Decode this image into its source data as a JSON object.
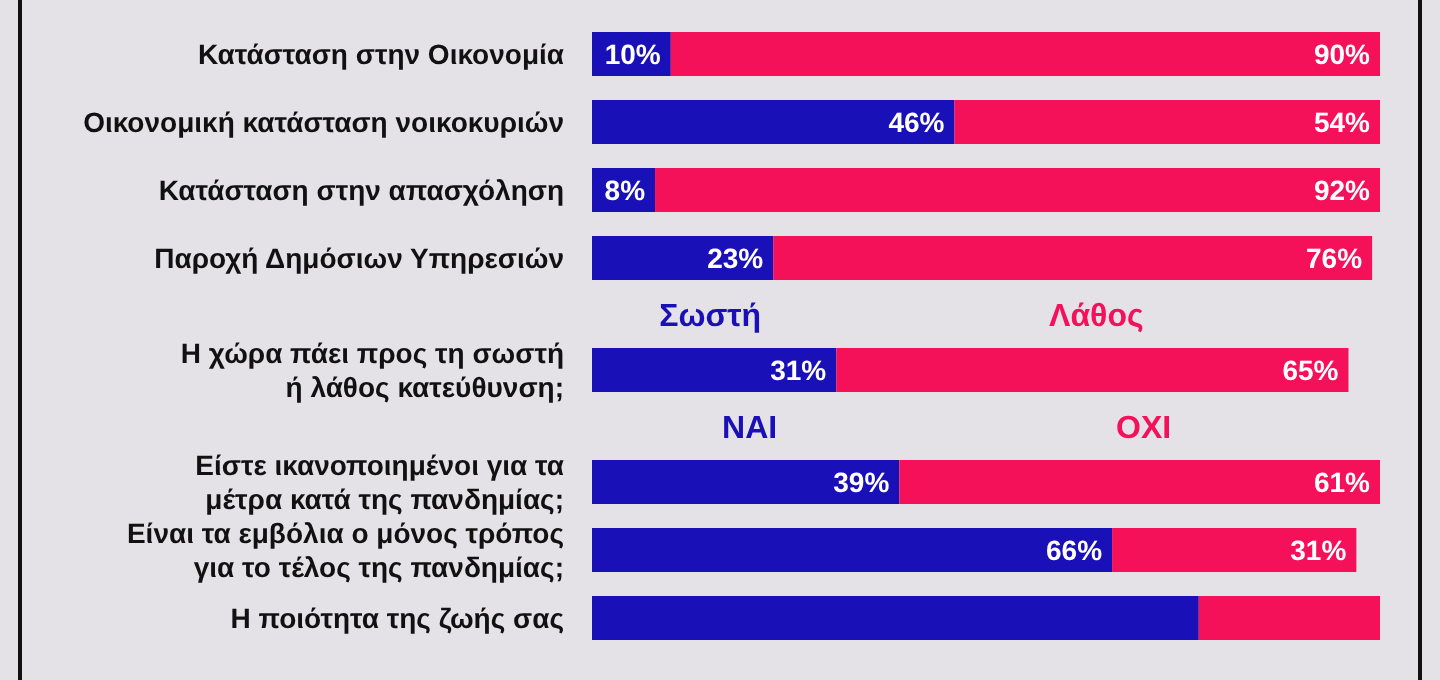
{
  "chart_data": {
    "type": "bar",
    "orientation": "horizontal",
    "stacked": true,
    "xlim": [
      0,
      100
    ],
    "tick_labels": "y",
    "categories": [
      "Κατάσταση στην Οικονομία",
      "Οικονομική κατάσταση νοικοκυριών",
      "Κατάσταση στην απασχόληση",
      "Παροχή Δημόσιων Υπηρεσιών",
      "Η χώρα πάει προς τη σωστή\nή λάθος κατεύθυνση;",
      "Είστε ικανοποιημένοι για τα\nμέτρα κατά της πανδημίας;",
      "Είναι τα εμβόλια ο μόνος τρόπος\nγια το τέλος της πανδημίας;",
      "Η ποιότητα της ζωής σας"
    ],
    "series": [
      {
        "color": "#1a10b8",
        "values": [
          10,
          46,
          8,
          23,
          31,
          39,
          66,
          77
        ],
        "value_labels": [
          "10%",
          "46%",
          "8%",
          "23%",
          "31%",
          "39%",
          "66%",
          null
        ]
      },
      {
        "color": "#f5105a",
        "values": [
          90,
          54,
          92,
          76,
          65,
          61,
          31,
          23
        ],
        "value_labels": [
          "90%",
          "54%",
          "92%",
          "76%",
          "65%",
          "61%",
          "31%",
          null
        ]
      }
    ],
    "annotations": [
      "Σωστή",
      "Λάθος",
      "ΝΑΙ",
      "ΟΧΙ"
    ]
  }
}
